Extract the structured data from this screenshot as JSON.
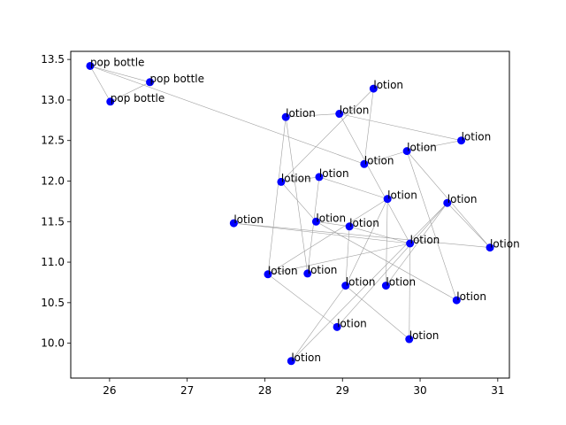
{
  "chart_data": {
    "type": "scatter",
    "title": "",
    "xlabel": "",
    "ylabel": "",
    "xlim": [
      25.5,
      31.15
    ],
    "ylim": [
      9.57,
      13.6
    ],
    "xticks": [
      26,
      27,
      28,
      29,
      30,
      31
    ],
    "yticks": [
      10.0,
      10.5,
      11.0,
      11.5,
      12.0,
      12.5,
      13.0,
      13.5
    ],
    "grid": false,
    "point_color": "#0000ff",
    "edge_color": "#a0a0a0",
    "points": [
      {
        "x": 25.75,
        "y": 13.42,
        "label": "pop bottle"
      },
      {
        "x": 26.52,
        "y": 13.22,
        "label": "pop bottle"
      },
      {
        "x": 26.01,
        "y": 12.98,
        "label": "pop bottle"
      },
      {
        "x": 29.4,
        "y": 13.14,
        "label": "lotion"
      },
      {
        "x": 28.27,
        "y": 12.79,
        "label": "lotion"
      },
      {
        "x": 28.96,
        "y": 12.83,
        "label": "lotion"
      },
      {
        "x": 30.53,
        "y": 12.5,
        "label": "lotion"
      },
      {
        "x": 29.83,
        "y": 12.37,
        "label": "lotion"
      },
      {
        "x": 29.28,
        "y": 12.21,
        "label": "lotion"
      },
      {
        "x": 28.7,
        "y": 12.05,
        "label": "lotion"
      },
      {
        "x": 28.21,
        "y": 11.99,
        "label": "lotion"
      },
      {
        "x": 29.58,
        "y": 11.78,
        "label": "lotion"
      },
      {
        "x": 30.35,
        "y": 11.73,
        "label": "lotion"
      },
      {
        "x": 27.6,
        "y": 11.48,
        "label": "lotion"
      },
      {
        "x": 28.66,
        "y": 11.5,
        "label": "lotion"
      },
      {
        "x": 29.09,
        "y": 11.44,
        "label": "lotion"
      },
      {
        "x": 29.87,
        "y": 11.23,
        "label": "lotion"
      },
      {
        "x": 30.9,
        "y": 11.18,
        "label": "lotion"
      },
      {
        "x": 28.04,
        "y": 10.85,
        "label": "lotion"
      },
      {
        "x": 28.55,
        "y": 10.86,
        "label": "lotion"
      },
      {
        "x": 29.04,
        "y": 10.71,
        "label": "lotion"
      },
      {
        "x": 29.56,
        "y": 10.71,
        "label": "lotion"
      },
      {
        "x": 30.47,
        "y": 10.53,
        "label": "lotion"
      },
      {
        "x": 28.93,
        "y": 10.2,
        "label": "lotion"
      },
      {
        "x": 29.86,
        "y": 10.05,
        "label": "lotion"
      },
      {
        "x": 28.34,
        "y": 9.78,
        "label": "lotion"
      }
    ],
    "edges": [
      [
        0,
        1
      ],
      [
        0,
        2
      ],
      [
        1,
        2
      ],
      [
        0,
        8
      ],
      [
        3,
        8
      ],
      [
        3,
        10
      ],
      [
        4,
        5
      ],
      [
        4,
        18
      ],
      [
        4,
        19
      ],
      [
        5,
        6
      ],
      [
        5,
        16
      ],
      [
        6,
        7
      ],
      [
        7,
        8
      ],
      [
        7,
        22
      ],
      [
        7,
        17
      ],
      [
        9,
        10
      ],
      [
        9,
        11
      ],
      [
        9,
        19
      ],
      [
        11,
        18
      ],
      [
        11,
        21
      ],
      [
        12,
        21
      ],
      [
        12,
        23
      ],
      [
        12,
        25
      ],
      [
        12,
        17
      ],
      [
        13,
        17
      ],
      [
        13,
        16
      ],
      [
        14,
        15
      ],
      [
        14,
        22
      ],
      [
        14,
        10
      ],
      [
        15,
        16
      ],
      [
        15,
        20
      ],
      [
        16,
        18
      ],
      [
        16,
        24
      ],
      [
        18,
        23
      ],
      [
        20,
        24
      ],
      [
        20,
        25
      ],
      [
        20,
        11
      ]
    ]
  }
}
